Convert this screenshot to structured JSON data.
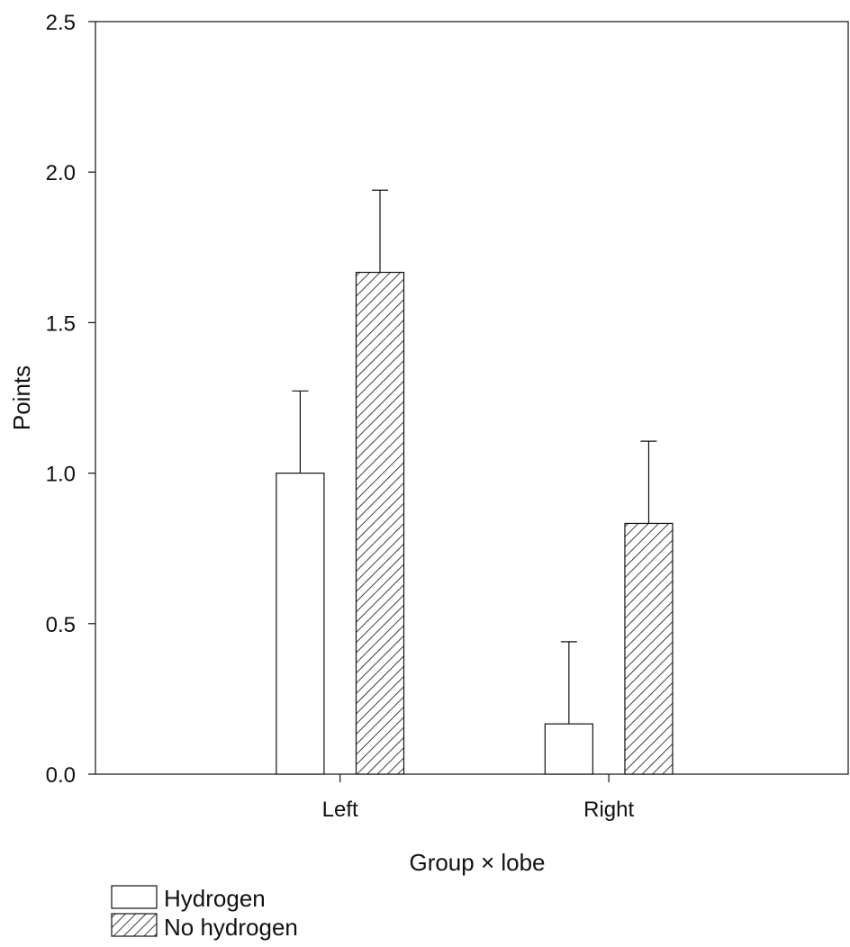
{
  "chart_data": {
    "type": "bar",
    "xlabel": "Group × lobe",
    "ylabel": "Points",
    "categories": [
      "Left",
      "Right"
    ],
    "ylim": [
      0,
      2.5
    ],
    "yticks": [
      0.0,
      0.5,
      1.0,
      1.5,
      2.0,
      2.5
    ],
    "ytick_labels": [
      "0.0",
      "0.5",
      "1.0",
      "1.5",
      "2.0",
      "2.5"
    ],
    "grid": false,
    "legend_position": "bottom-left",
    "series": [
      {
        "name": "Hydrogen",
        "fill": "plain",
        "values": [
          1.0,
          0.167
        ],
        "error": [
          0.273,
          0.273
        ]
      },
      {
        "name": "No hydrogen",
        "fill": "hatched",
        "values": [
          1.667,
          0.833
        ],
        "error": [
          0.273,
          0.273
        ]
      }
    ]
  },
  "colors": {
    "stroke": "#111111",
    "background": "#ffffff"
  }
}
